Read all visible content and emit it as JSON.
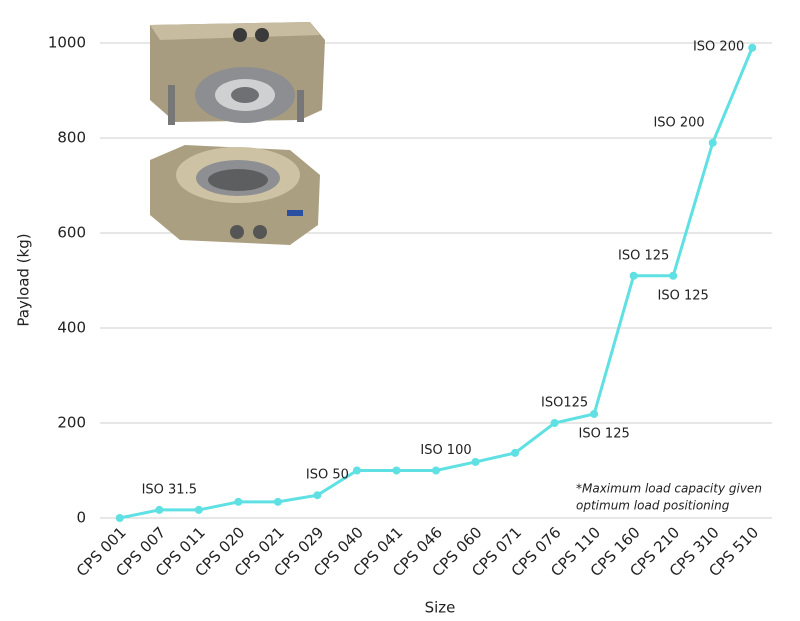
{
  "chart_data": {
    "type": "line",
    "x_label": "Size",
    "y_label": "Payload (kg)",
    "categories": [
      "CPS 001",
      "CPS 007",
      "CPS 011",
      "CPS 020",
      "CPS 021",
      "CPS 029",
      "CPS 040",
      "CPS 041",
      "CPS 046",
      "CPS 060",
      "CPS 071",
      "CPS 076",
      "CPS 110",
      "CPS 160",
      "CPS 210",
      "CPS 310",
      "CPS 510"
    ],
    "values": [
      0,
      17,
      17,
      34,
      34,
      48,
      100,
      100,
      100,
      118,
      137,
      200,
      219,
      510,
      510,
      790,
      990
    ],
    "point_labels": [
      null,
      "ISO 31.5",
      null,
      null,
      null,
      "ISO 50",
      null,
      null,
      "ISO 100",
      null,
      null,
      "ISO125",
      "ISO 125",
      "ISO 125",
      "ISO 125",
      "ISO 200",
      "ISO 200"
    ],
    "color": "#5fe0e3",
    "ylim": [
      0,
      1000
    ],
    "yticks": [
      0,
      200,
      400,
      600,
      800,
      1000
    ],
    "grid": true,
    "note": [
      "*Maximum load capacity given",
      "optimum load positioning"
    ]
  }
}
